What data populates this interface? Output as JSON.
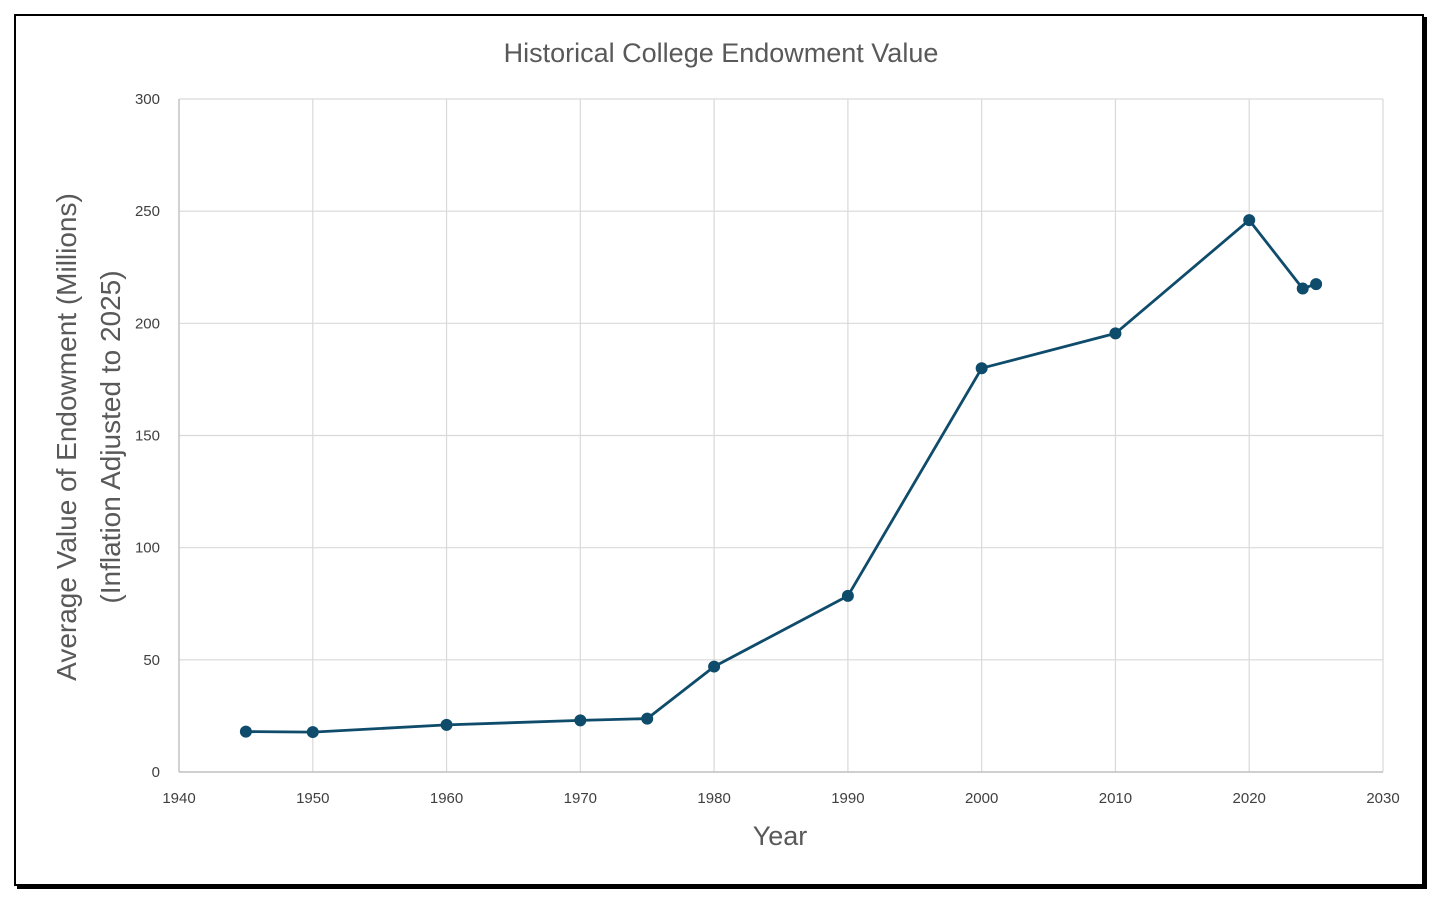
{
  "chart_data": {
    "type": "line",
    "title": "Historical College Endowment Value",
    "xlabel": "Year",
    "ylabel_lines": [
      "Average Value of Endowment (Millions)",
      "(Inflation Adjusted to 2025)"
    ],
    "xlim": [
      1940,
      2030
    ],
    "ylim": [
      0,
      300
    ],
    "x_ticks": [
      1940,
      1950,
      1960,
      1970,
      1980,
      1990,
      2000,
      2010,
      2020,
      2030
    ],
    "y_ticks": [
      0,
      50,
      100,
      150,
      200,
      250,
      300
    ],
    "grid": true,
    "legend": "none",
    "series": [
      {
        "color": "#0f4c6b",
        "marker": "circle",
        "x": [
          1945,
          1950,
          1960,
          1970,
          1975,
          1980,
          1990,
          2000,
          2010,
          2020,
          2024,
          2025
        ],
        "y": [
          18,
          17.8,
          21,
          23,
          23.8,
          47,
          78.5,
          180,
          195.5,
          246,
          215.5,
          217.5
        ]
      }
    ]
  },
  "colors": {
    "line": "#0f4c6b",
    "grid": "#d9d9d9",
    "axis": "#bfbfbf",
    "text": "#595959"
  }
}
